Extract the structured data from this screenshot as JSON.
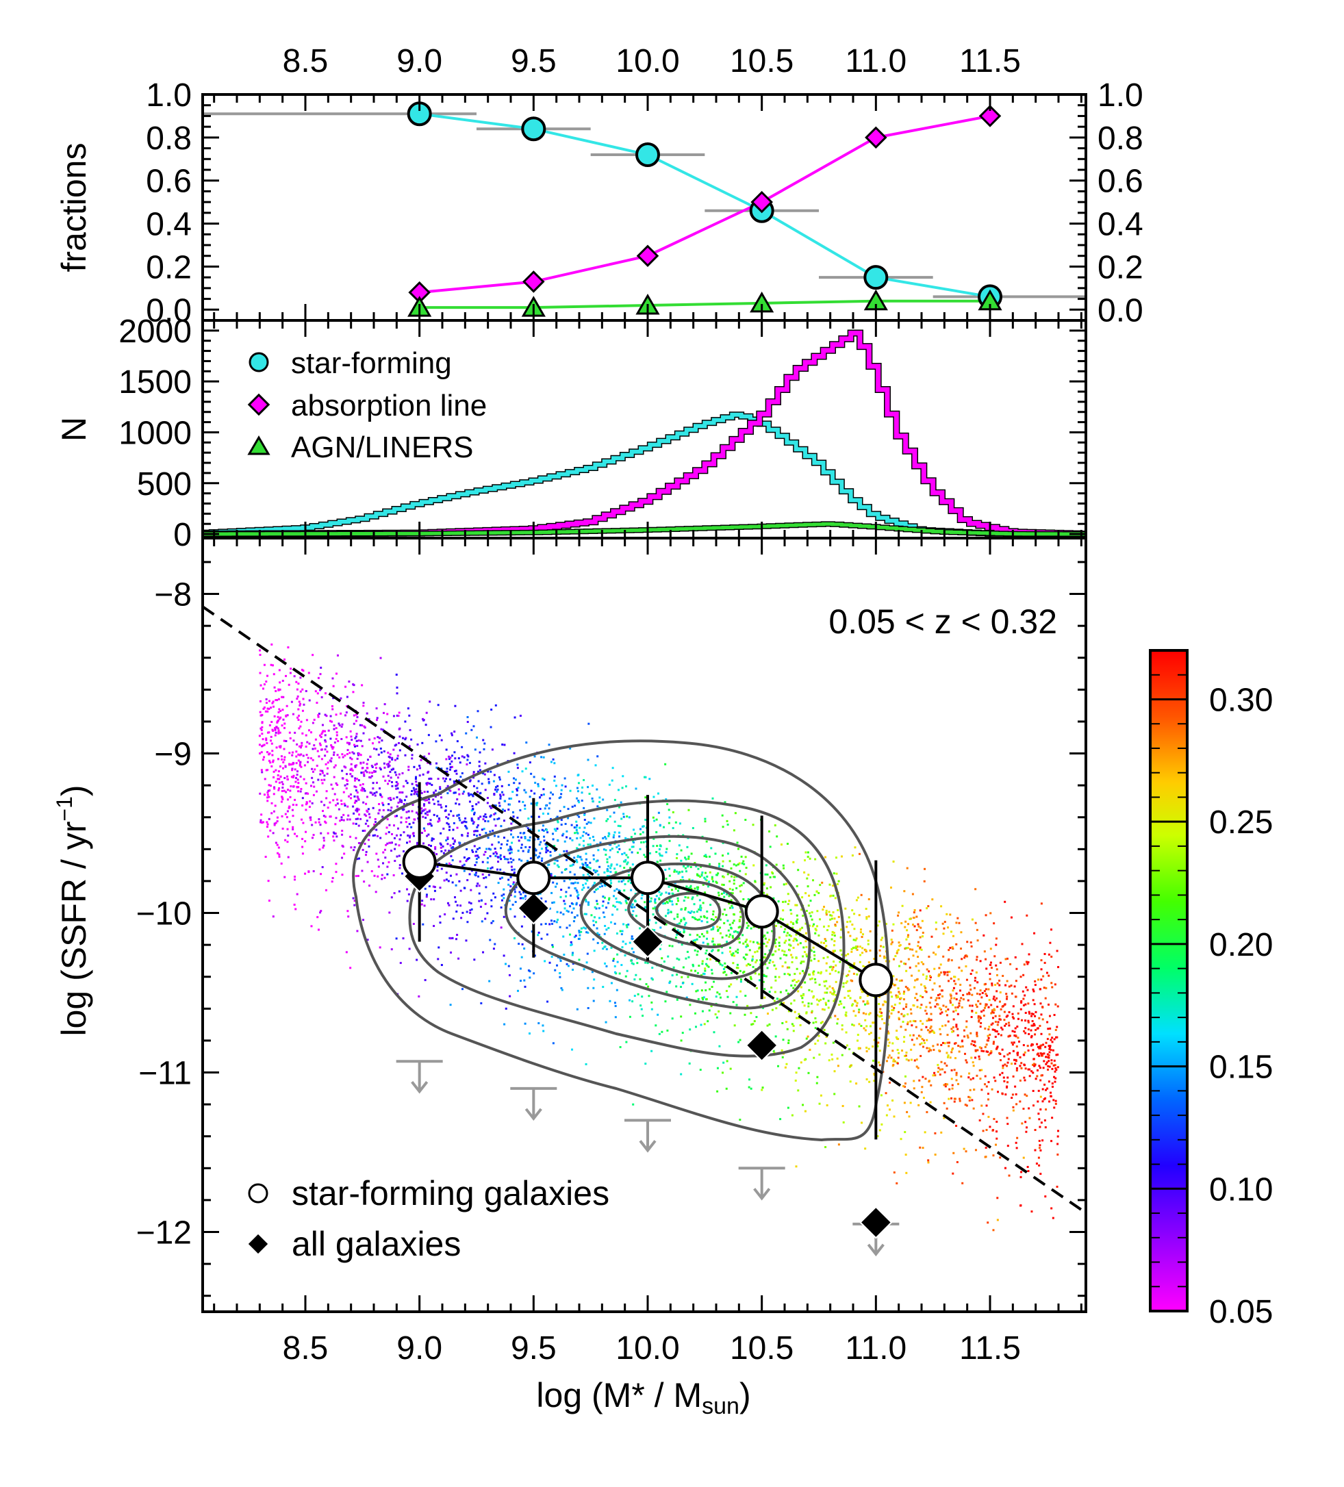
{
  "figure": {
    "x_axis_label": "log (M* / M",
    "x_axis_label_sub": "sun",
    "x_axis_label_end": ")",
    "x_ticks": [
      8.5,
      9.0,
      9.5,
      10.0,
      10.5,
      11.0,
      11.5
    ],
    "x_tick_labels": [
      "8.5",
      "9.0",
      "9.5",
      "10.0",
      "10.5",
      "11.0",
      "11.5"
    ],
    "xlim": [
      8.05,
      11.92
    ],
    "colors": {
      "star_forming": "#33e6e6",
      "absorption": "#ff00ff",
      "agn": "#33dd33",
      "gray_marker": "#999999",
      "contour": "#555555",
      "sf_white": "#ffffff",
      "all_black": "#000000"
    }
  },
  "chart_data": [
    {
      "panel": "fractions",
      "type": "line",
      "ylabel": "fractions",
      "ylim": [
        -0.05,
        1.0
      ],
      "y_ticks": [
        0.0,
        0.2,
        0.4,
        0.6,
        0.8,
        1.0
      ],
      "y_tick_labels": [
        "0.0",
        "0.2",
        "0.4",
        "0.6",
        "0.8",
        "1.0"
      ],
      "x": [
        9.0,
        9.5,
        10.0,
        10.5,
        11.0,
        11.5
      ],
      "series": [
        {
          "name": "star-forming",
          "marker": "circle",
          "values": [
            0.91,
            0.84,
            0.72,
            0.46,
            0.15,
            0.06
          ]
        },
        {
          "name": "absorption line",
          "marker": "diamond",
          "values": [
            0.08,
            0.13,
            0.25,
            0.5,
            0.8,
            0.9
          ]
        },
        {
          "name": "AGN/LINERS",
          "marker": "triangle",
          "values": [
            0.01,
            0.01,
            0.02,
            0.03,
            0.04,
            0.04
          ]
        }
      ],
      "bin_widths": [
        {
          "x0": 8.05,
          "x1": 9.25,
          "y": 0.91
        },
        {
          "x0": 9.25,
          "x1": 9.75,
          "y": 0.84
        },
        {
          "x0": 9.75,
          "x1": 10.25,
          "y": 0.72
        },
        {
          "x0": 10.25,
          "x1": 10.75,
          "y": 0.46
        },
        {
          "x0": 10.75,
          "x1": 11.25,
          "y": 0.15
        },
        {
          "x0": 11.25,
          "x1": 11.92,
          "y": 0.06
        }
      ]
    },
    {
      "panel": "histogram",
      "type": "line",
      "ylabel": "N",
      "ylim": [
        -40,
        2100
      ],
      "y_ticks": [
        0,
        500,
        1000,
        1500,
        2000
      ],
      "y_tick_labels": [
        "0",
        "500",
        "1000",
        "1500",
        "2000"
      ],
      "legend": {
        "placement": "top-left",
        "entries": [
          "star-forming",
          "absorption line",
          "AGN/LINERS"
        ]
      },
      "series": [
        {
          "name": "star-forming",
          "points": [
            [
              8.0,
              5
            ],
            [
              8.5,
              60
            ],
            [
              8.75,
              150
            ],
            [
              9.0,
              300
            ],
            [
              9.25,
              420
            ],
            [
              9.5,
              520
            ],
            [
              9.75,
              650
            ],
            [
              10.0,
              850
            ],
            [
              10.25,
              1080
            ],
            [
              10.4,
              1180
            ],
            [
              10.5,
              1100
            ],
            [
              10.6,
              950
            ],
            [
              10.75,
              700
            ],
            [
              10.9,
              350
            ],
            [
              11.0,
              180
            ],
            [
              11.2,
              40
            ],
            [
              11.5,
              5
            ],
            [
              11.92,
              0
            ]
          ]
        },
        {
          "name": "absorption line",
          "points": [
            [
              8.0,
              0
            ],
            [
              9.0,
              10
            ],
            [
              9.5,
              50
            ],
            [
              9.75,
              120
            ],
            [
              10.0,
              330
            ],
            [
              10.25,
              650
            ],
            [
              10.5,
              1150
            ],
            [
              10.65,
              1600
            ],
            [
              10.8,
              1820
            ],
            [
              10.92,
              1990
            ],
            [
              11.0,
              1600
            ],
            [
              11.1,
              1000
            ],
            [
              11.25,
              450
            ],
            [
              11.4,
              120
            ],
            [
              11.6,
              20
            ],
            [
              11.92,
              0
            ]
          ]
        },
        {
          "name": "AGN/LINERS",
          "points": [
            [
              8.0,
              0
            ],
            [
              9.0,
              5
            ],
            [
              9.5,
              15
            ],
            [
              10.0,
              40
            ],
            [
              10.5,
              75
            ],
            [
              10.8,
              100
            ],
            [
              11.0,
              70
            ],
            [
              11.3,
              20
            ],
            [
              11.6,
              2
            ],
            [
              11.92,
              0
            ]
          ]
        }
      ]
    },
    {
      "panel": "ssfr",
      "type": "scatter",
      "ylabel": "log (SSFR / yr",
      "ylabel_sup": "−1",
      "ylabel_end": ")",
      "ylim": [
        -12.5,
        -7.65
      ],
      "y_ticks": [
        -8,
        -9,
        -10,
        -11,
        -12
      ],
      "y_tick_labels": [
        "−8",
        "−9",
        "−10",
        "−11",
        "−12"
      ],
      "annotation": "0.05 < z < 0.32",
      "fit_line": [
        [
          8.05,
          -8.08
        ],
        [
          11.92,
          -11.88
        ]
      ],
      "legend": {
        "placement": "bottom-left",
        "entries": [
          "star-forming galaxies",
          "all galaxies"
        ]
      },
      "series": [
        {
          "name": "star-forming galaxies",
          "marker": "open-circle",
          "x": [
            9.0,
            9.5,
            10.0,
            10.5,
            11.0
          ],
          "values": [
            -9.68,
            -9.78,
            -9.78,
            -9.99,
            -10.42
          ],
          "err_low": [
            0.5,
            0.5,
            0.52,
            0.55,
            1.0
          ],
          "err_high": [
            0.5,
            0.5,
            0.52,
            0.6,
            0.75
          ]
        },
        {
          "name": "all galaxies",
          "marker": "diamond",
          "x": [
            9.0,
            9.5,
            10.0,
            10.5,
            11.0
          ],
          "values": [
            -9.77,
            -9.97,
            -10.18,
            -10.83,
            -11.94
          ]
        }
      ],
      "upper_limits": [
        {
          "x": 9.0,
          "y": -10.93
        },
        {
          "x": 9.5,
          "y": -11.1
        },
        {
          "x": 10.0,
          "y": -11.3
        },
        {
          "x": 10.5,
          "y": -11.6
        },
        {
          "x": 11.0,
          "y": -11.95
        }
      ],
      "colorbar": {
        "ticks": [
          0.05,
          0.1,
          0.15,
          0.2,
          0.25,
          0.3
        ],
        "tick_labels": [
          "0.05",
          "0.10",
          "0.15",
          "0.20",
          "0.25",
          "0.30"
        ],
        "range": [
          0.05,
          0.32
        ]
      }
    }
  ]
}
